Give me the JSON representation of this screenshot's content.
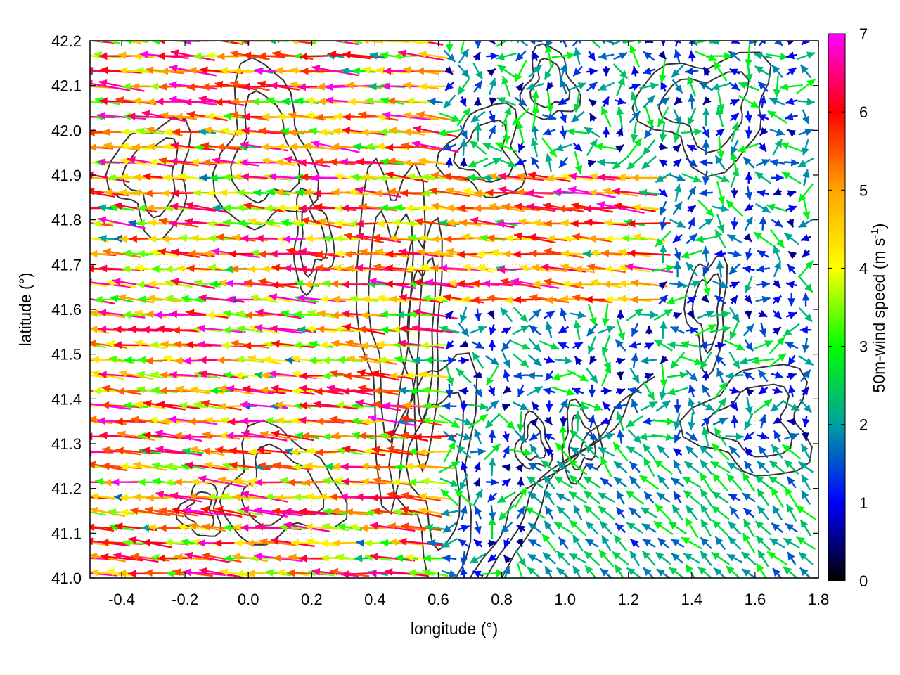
{
  "chart_data": {
    "type": "vector-field",
    "xlabel": "longitude (°)",
    "ylabel": "latitude (°)",
    "xlim": [
      -0.5,
      1.8
    ],
    "ylim": [
      41.0,
      42.2
    ],
    "xticks": [
      "-0.4",
      "-0.2",
      "0.0",
      "0.2",
      "0.4",
      "0.6",
      "0.8",
      "1.0",
      "1.2",
      "1.4",
      "1.6",
      "1.8"
    ],
    "xtick_values": [
      -0.4,
      -0.2,
      0.0,
      0.2,
      0.4,
      0.6,
      0.8,
      1.0,
      1.2,
      1.4,
      1.6,
      1.8
    ],
    "yticks": [
      "41.0",
      "41.1",
      "41.2",
      "41.3",
      "41.4",
      "41.5",
      "41.6",
      "41.7",
      "41.8",
      "41.9",
      "42.0",
      "42.1",
      "42.2"
    ],
    "ytick_values": [
      41.0,
      41.1,
      41.2,
      41.3,
      41.4,
      41.5,
      41.6,
      41.7,
      41.8,
      41.9,
      42.0,
      42.1,
      42.2
    ],
    "grid": true,
    "colorbar": {
      "label_main": "50m-wind speed (m s",
      "label_sup": "-1",
      "label_end": ")",
      "range": [
        0,
        7
      ],
      "ticks": [
        "0",
        "1",
        "2",
        "3",
        "4",
        "5",
        "6",
        "7"
      ],
      "tick_values": [
        0,
        1,
        2,
        3,
        4,
        5,
        6,
        7
      ],
      "palette": [
        "#000000",
        "#0000ff",
        "#00a0a0",
        "#00ff00",
        "#ffff00",
        "#ffa500",
        "#ff0000",
        "#ff00ff"
      ]
    },
    "wind_regions": [
      {
        "region": "west",
        "lon_range": [
          -0.5,
          0.6
        ],
        "lat_range": [
          41.0,
          42.2
        ],
        "direction": "from east",
        "speed_range": [
          3,
          7
        ]
      },
      {
        "region": "central band",
        "lon_range": [
          0.6,
          1.3
        ],
        "lat_range": [
          41.6,
          41.9
        ],
        "direction": "from east",
        "speed_range": [
          4,
          7
        ]
      },
      {
        "region": "east",
        "lon_range": [
          1.3,
          1.8
        ],
        "lat_range": [
          41.4,
          42.2
        ],
        "direction": "variable",
        "speed_range": [
          0.5,
          3
        ]
      },
      {
        "region": "southeast",
        "lon_range": [
          0.9,
          1.8
        ],
        "lat_range": [
          41.0,
          41.3
        ],
        "direction": "from north-east",
        "speed_range": [
          1.5,
          3
        ]
      }
    ],
    "contour_color": "#333333"
  }
}
